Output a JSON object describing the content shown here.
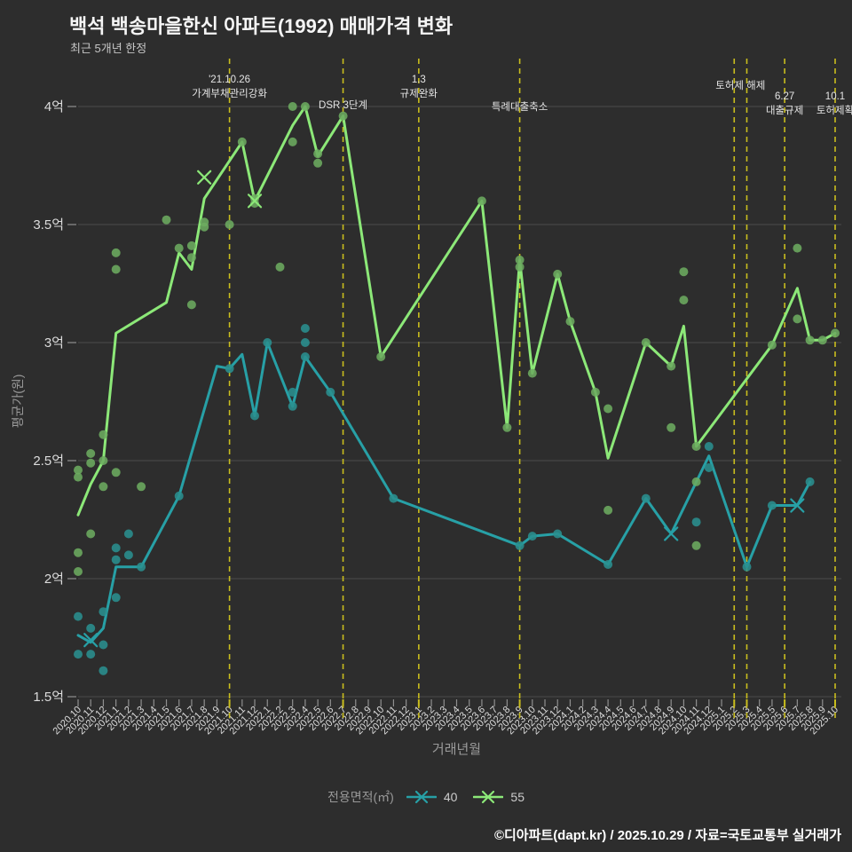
{
  "title": "백석 백송마을한신 아파트(1992) 매매가격 변화",
  "subtitle": "최근 5개년 한정",
  "footer": {
    "text": "©디아파트(dapt.kr) / 2025.10.29 / 자료=국토교통부 실거래가"
  },
  "legend": {
    "label": "전용면적(㎡)",
    "series": [
      "40",
      "55"
    ]
  },
  "colors": {
    "bg": "#2d2d2d",
    "grid": "#4b4b4b",
    "axis_tick": "#8f8f8f",
    "tick_label": "#dcdcdc",
    "muted_text": "#9a9a9a",
    "annotation_text": "#e4e4e4",
    "event_line": "#c9bd1d",
    "teal_line": "#27a0a6",
    "teal_scatter": "#2a8f8f",
    "green_line": "#8ce878",
    "green_scatter": "#6cab60"
  },
  "chart_data": {
    "type": "line",
    "title": "백석 백송마을한신 아파트(1992) 매매가격 변화",
    "xlabel": "거래년월",
    "ylabel": "평균가(원)",
    "unit": "억",
    "ylim": [
      1.45,
      4.12
    ],
    "grid": true,
    "legend_position": "bottom",
    "y_ticks": [
      {
        "v": 4.0,
        "label": "4억"
      },
      {
        "v": 3.5,
        "label": "3.5억"
      },
      {
        "v": 3.0,
        "label": "3억"
      },
      {
        "v": 2.5,
        "label": "2.5억"
      },
      {
        "v": 2.0,
        "label": "2억"
      },
      {
        "v": 1.5,
        "label": "1.5억"
      }
    ],
    "categories": [
      "2020.10",
      "2020.11",
      "2020.12",
      "2021.1",
      "2021.2",
      "2021.3",
      "2021.4",
      "2021.5",
      "2021.6",
      "2021.7",
      "2021.8",
      "2021.9",
      "2021.10",
      "2021.11",
      "2021.12",
      "2022.1",
      "2022.2",
      "2022.3",
      "2022.4",
      "2022.5",
      "2022.6",
      "2022.7",
      "2022.8",
      "2022.9",
      "2022.10",
      "2022.11",
      "2022.12",
      "2023.1",
      "2023.2",
      "2023.3",
      "2023.4",
      "2023.5",
      "2023.6",
      "2023.7",
      "2023.8",
      "2023.9",
      "2023.10",
      "2023.11",
      "2023.12",
      "2024.1",
      "2024.2",
      "2024.3",
      "2024.4",
      "2024.5",
      "2024.6",
      "2024.7",
      "2024.8",
      "2024.9",
      "2024.10",
      "2024.11",
      "2024.12",
      "2025.1",
      "2025.2",
      "2025.3",
      "2025.4",
      "2025.5",
      "2025.6",
      "2025.7",
      "2025.8",
      "2025.9",
      "2025.10"
    ],
    "series": [
      {
        "name": "40",
        "color_key": "teal_line",
        "values": [
          1.76,
          1.73,
          1.79,
          2.05,
          null,
          2.05,
          null,
          null,
          2.35,
          null,
          null,
          2.9,
          2.89,
          2.95,
          2.69,
          3.0,
          null,
          2.73,
          2.94,
          null,
          2.79,
          null,
          null,
          null,
          null,
          2.34,
          null,
          null,
          null,
          null,
          null,
          null,
          null,
          null,
          null,
          2.14,
          2.18,
          null,
          2.19,
          null,
          null,
          null,
          2.06,
          null,
          null,
          2.34,
          null,
          2.19,
          null,
          null,
          2.52,
          null,
          null,
          2.05,
          null,
          2.31,
          null,
          2.31,
          2.41,
          null,
          null
        ]
      },
      {
        "name": "55",
        "color_key": "green_line",
        "values": [
          2.27,
          2.4,
          2.5,
          3.04,
          null,
          null,
          null,
          3.17,
          3.38,
          3.31,
          3.61,
          null,
          null,
          3.85,
          3.6,
          null,
          null,
          3.92,
          4.0,
          3.79,
          null,
          3.96,
          null,
          null,
          2.94,
          null,
          null,
          null,
          null,
          null,
          null,
          null,
          3.6,
          null,
          2.64,
          3.35,
          2.87,
          null,
          3.29,
          3.09,
          null,
          2.79,
          2.51,
          null,
          null,
          3.0,
          null,
          2.9,
          3.07,
          2.56,
          null,
          null,
          null,
          null,
          null,
          2.99,
          null,
          3.23,
          3.01,
          3.01,
          3.04
        ]
      }
    ],
    "scatter": [
      {
        "series": "40",
        "color_key": "teal_scatter",
        "points": [
          [
            0,
            1.84
          ],
          [
            0,
            1.68
          ],
          [
            1,
            1.79
          ],
          [
            1,
            1.68
          ],
          [
            2,
            1.86
          ],
          [
            2,
            1.72
          ],
          [
            2,
            1.61
          ],
          [
            3,
            2.13
          ],
          [
            3,
            2.08
          ],
          [
            3,
            1.92
          ],
          [
            4,
            2.19
          ],
          [
            4,
            2.1
          ],
          [
            5,
            2.05
          ],
          [
            8,
            2.35
          ],
          [
            12,
            2.89
          ],
          [
            14,
            2.69
          ],
          [
            15,
            3.0
          ],
          [
            17,
            2.79
          ],
          [
            17,
            2.73
          ],
          [
            18,
            3.06
          ],
          [
            18,
            3.0
          ],
          [
            18,
            2.94
          ],
          [
            20,
            2.79
          ],
          [
            25,
            2.34
          ],
          [
            35,
            2.14
          ],
          [
            36,
            2.18
          ],
          [
            38,
            2.19
          ],
          [
            42,
            2.06
          ],
          [
            45,
            2.34
          ],
          [
            49,
            2.24
          ],
          [
            50,
            2.56
          ],
          [
            50,
            2.47
          ],
          [
            53,
            2.05
          ],
          [
            55,
            2.31
          ],
          [
            58,
            2.41
          ]
        ]
      },
      {
        "series": "55",
        "color_key": "green_scatter",
        "points": [
          [
            0,
            2.46
          ],
          [
            0,
            2.43
          ],
          [
            0,
            2.11
          ],
          [
            0,
            2.03
          ],
          [
            1,
            2.53
          ],
          [
            1,
            2.49
          ],
          [
            1,
            2.19
          ],
          [
            2,
            2.61
          ],
          [
            2,
            2.5
          ],
          [
            2,
            2.39
          ],
          [
            3,
            3.38
          ],
          [
            3,
            3.31
          ],
          [
            3,
            2.45
          ],
          [
            5,
            2.39
          ],
          [
            7,
            3.52
          ],
          [
            8,
            3.4
          ],
          [
            9,
            3.41
          ],
          [
            9,
            3.36
          ],
          [
            9,
            3.16
          ],
          [
            10,
            3.51
          ],
          [
            10,
            3.49
          ],
          [
            12,
            3.5
          ],
          [
            13,
            3.85
          ],
          [
            14,
            3.61
          ],
          [
            14,
            3.59
          ],
          [
            16,
            3.32
          ],
          [
            17,
            4.0
          ],
          [
            17,
            3.85
          ],
          [
            18,
            4.0
          ],
          [
            19,
            3.8
          ],
          [
            19,
            3.76
          ],
          [
            21,
            3.96
          ],
          [
            24,
            2.94
          ],
          [
            32,
            3.6
          ],
          [
            34,
            2.64
          ],
          [
            35,
            3.35
          ],
          [
            35,
            3.32
          ],
          [
            36,
            2.87
          ],
          [
            38,
            3.29
          ],
          [
            39,
            3.09
          ],
          [
            41,
            2.79
          ],
          [
            42,
            2.72
          ],
          [
            42,
            2.29
          ],
          [
            45,
            3.0
          ],
          [
            47,
            2.9
          ],
          [
            47,
            2.64
          ],
          [
            48,
            3.3
          ],
          [
            48,
            3.18
          ],
          [
            49,
            2.56
          ],
          [
            49,
            2.41
          ],
          [
            49,
            2.14
          ],
          [
            55,
            2.99
          ],
          [
            57,
            3.4
          ],
          [
            57,
            3.1
          ],
          [
            58,
            3.01
          ],
          [
            59,
            3.01
          ],
          [
            60,
            3.04
          ]
        ]
      }
    ],
    "x_markers": [
      {
        "series": "40",
        "month": "2020.11",
        "v": 1.74
      },
      {
        "series": "55",
        "month": "2021.8",
        "v": 3.7
      },
      {
        "series": "55",
        "month": "2021.12",
        "v": 3.6
      },
      {
        "series": "40",
        "month": "2024.9",
        "v": 2.19
      },
      {
        "series": "40",
        "month": "2025.7",
        "v": 2.31
      }
    ],
    "events": [
      {
        "month": "2021.10",
        "lines": [
          "'21.10.26",
          "가계부채관리강화"
        ],
        "y": 93
      },
      {
        "month": "2022.7",
        "lines": [
          "DSR 3단계"
        ],
        "y": 122
      },
      {
        "month": "2023.1",
        "lines": [
          "1.3",
          "규제완화"
        ],
        "y": 93
      },
      {
        "month": "2023.9",
        "lines": [
          "특례대출축소"
        ],
        "y": 124
      },
      {
        "month": "2025.2",
        "lines": [
          "토허제 해제"
        ],
        "y": 100,
        "dx": 7
      },
      {
        "month": "2025.3",
        "lines": []
      },
      {
        "month": "2025.6",
        "lines": [
          "6.27",
          "대출규제"
        ],
        "y": 112
      },
      {
        "month": "2025.10",
        "lines": [
          "10.1",
          "토허제확"
        ],
        "y": 112
      }
    ]
  }
}
